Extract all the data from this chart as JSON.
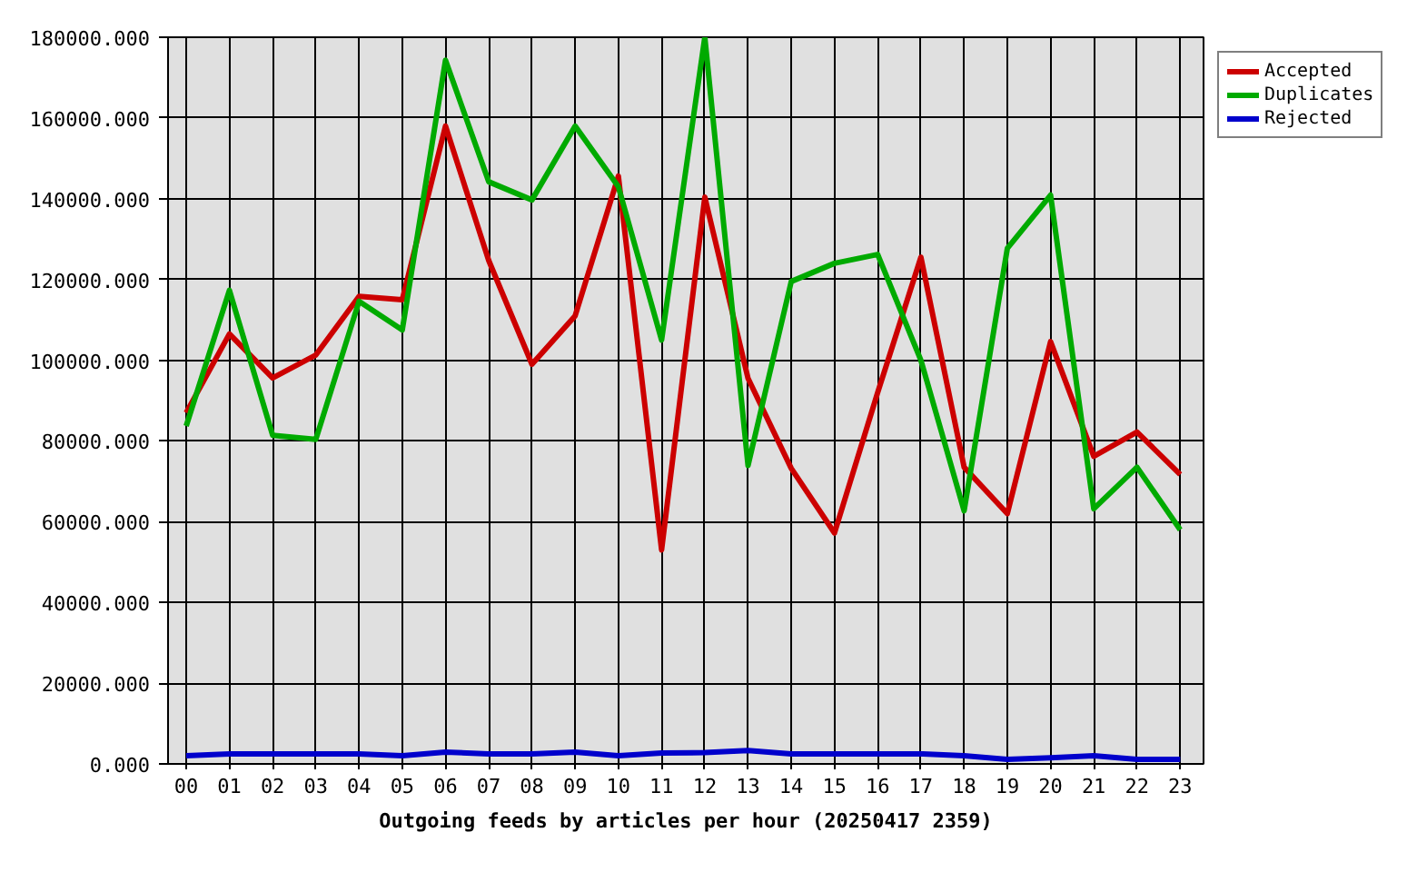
{
  "chart_data": {
    "type": "line",
    "xlabel": "Outgoing feeds by articles per hour (20250417 2359)",
    "categories": [
      "00",
      "01",
      "02",
      "03",
      "04",
      "05",
      "06",
      "07",
      "08",
      "09",
      "10",
      "11",
      "12",
      "13",
      "14",
      "15",
      "16",
      "17",
      "18",
      "19",
      "20",
      "21",
      "22",
      "23"
    ],
    "series": [
      {
        "name": "Accepted",
        "color": "#cc0000",
        "values": [
          87000,
          106500,
          95600,
          101300,
          115800,
          115000,
          158000,
          124700,
          99000,
          111000,
          145600,
          53000,
          140400,
          95500,
          73200,
          57200,
          92000,
          125500,
          73500,
          62000,
          104600,
          76200,
          82200,
          71700
        ]
      },
      {
        "name": "Duplicates",
        "color": "#00aa00",
        "values": [
          83700,
          117300,
          81400,
          80400,
          114600,
          107500,
          174300,
          144200,
          139700,
          158000,
          143000,
          105000,
          180000,
          73900,
          119500,
          124000,
          126200,
          100000,
          62700,
          127700,
          140900,
          63200,
          73500,
          58000
        ]
      },
      {
        "name": "Rejected",
        "color": "#0000cc",
        "values": [
          2000,
          2500,
          2500,
          2500,
          2500,
          2000,
          2900,
          2500,
          2500,
          2900,
          2000,
          2700,
          2800,
          3300,
          2500,
          2500,
          2500,
          2500,
          2000,
          1100,
          1500,
          2000,
          1100,
          1100
        ]
      }
    ],
    "ylim": [
      0,
      180000
    ],
    "yticks": [
      {
        "value": 0,
        "label": "0.000"
      },
      {
        "value": 20000,
        "label": "20000.000"
      },
      {
        "value": 40000,
        "label": "40000.000"
      },
      {
        "value": 60000,
        "label": "60000.000"
      },
      {
        "value": 80000,
        "label": "80000.000"
      },
      {
        "value": 100000,
        "label": "100000.000"
      },
      {
        "value": 120000,
        "label": "120000.000"
      },
      {
        "value": 140000,
        "label": "140000.000"
      },
      {
        "value": 160000,
        "label": "160000.000"
      },
      {
        "value": 180000,
        "label": "180000.000"
      }
    ],
    "grid": true,
    "legend": "top right"
  }
}
